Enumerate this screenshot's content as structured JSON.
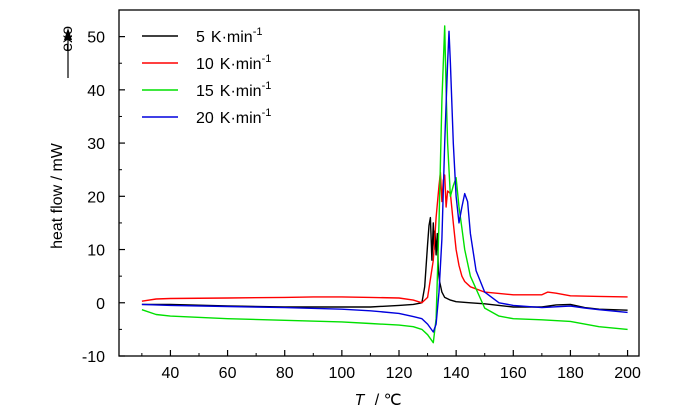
{
  "chart_data": {
    "type": "line",
    "xlabel_var": "T",
    "xlabel_unit": "/ ℃",
    "ylabel": "heat flow / mW",
    "exo_label": "exo",
    "xlim": [
      22,
      204
    ],
    "ylim": [
      -10,
      55
    ],
    "xticks": [
      40,
      60,
      80,
      100,
      120,
      140,
      160,
      180,
      200
    ],
    "yticks": [
      -10,
      0,
      10,
      20,
      30,
      40,
      50
    ],
    "grid": false,
    "legend_position": "top-left",
    "series": [
      {
        "legend_value": "5",
        "legend_unit": "K·min",
        "legend_exp": "-1",
        "color": "#000000",
        "x": [
          30,
          40,
          60,
          80,
          100,
          110,
          120,
          125,
          128,
          129,
          130,
          130.5,
          131,
          131.5,
          132,
          132.3,
          132.6,
          133,
          133.4,
          133.8,
          134.2,
          135,
          136,
          138,
          140,
          145,
          150,
          155,
          160,
          165,
          170,
          175,
          180,
          185,
          190,
          200
        ],
        "y": [
          -0.3,
          -0.3,
          -0.6,
          -0.8,
          -0.8,
          -0.8,
          -0.5,
          -0.3,
          0,
          3,
          11,
          14.5,
          16,
          8,
          15,
          10,
          13.5,
          9,
          13,
          6,
          4,
          2,
          1,
          0.5,
          0.2,
          0,
          -0.2,
          -0.5,
          -0.8,
          -0.8,
          -0.8,
          -0.4,
          -0.3,
          -0.9,
          -1.2,
          -1.4
        ]
      },
      {
        "legend_value": "10",
        "legend_unit": "K·min",
        "legend_exp": "-1",
        "color": "#ff0000",
        "x": [
          30,
          35,
          40,
          60,
          80,
          90,
          100,
          110,
          120,
          125,
          128,
          130,
          132,
          133,
          134,
          134.5,
          135,
          135.5,
          136,
          136.5,
          137,
          138,
          139,
          140,
          141,
          142,
          143,
          145,
          150,
          160,
          170,
          172,
          175,
          180,
          190,
          200
        ],
        "y": [
          0.3,
          0.7,
          0.8,
          0.9,
          1.0,
          1.1,
          1.1,
          1.0,
          0.9,
          0.5,
          0,
          1,
          8,
          16,
          22,
          24.5,
          19,
          23,
          24,
          18,
          21,
          20.5,
          15,
          10,
          7,
          5,
          4,
          3,
          2,
          1.5,
          1.5,
          2,
          1.8,
          1.3,
          1.2,
          1.1
        ]
      },
      {
        "legend_value": "15",
        "legend_unit": "K·min",
        "legend_exp": "-1",
        "color": "#00e000",
        "x": [
          30,
          35,
          40,
          60,
          80,
          100,
          110,
          120,
          125,
          128,
          130,
          132,
          133,
          134,
          135,
          136,
          136.5,
          137,
          138,
          139,
          140,
          141,
          142,
          143,
          145,
          150,
          155,
          160,
          170,
          180,
          185,
          190,
          200
        ],
        "y": [
          -1.3,
          -2.2,
          -2.5,
          -3.0,
          -3.3,
          -3.6,
          -3.9,
          -4.2,
          -4.5,
          -5,
          -6,
          -7.5,
          -3,
          15,
          38,
          52,
          40,
          30,
          20,
          22,
          23.5,
          18,
          14,
          10,
          5,
          -1,
          -2.5,
          -3,
          -3.2,
          -3.5,
          -4,
          -4.5,
          -5
        ]
      },
      {
        "legend_value": "20",
        "legend_unit": "K·min",
        "legend_exp": "-1",
        "color": "#0000dd",
        "x": [
          30,
          40,
          60,
          80,
          100,
          110,
          120,
          125,
          128,
          130,
          132,
          133,
          134,
          135,
          136,
          137,
          137.5,
          138,
          139,
          140,
          141,
          142,
          143,
          144,
          145,
          147,
          150,
          155,
          160,
          170,
          180,
          185,
          190,
          200
        ],
        "y": [
          -0.3,
          -0.5,
          -0.7,
          -0.9,
          -1.2,
          -1.5,
          -2,
          -2.6,
          -3,
          -4,
          -5.5,
          -4,
          2,
          12,
          30,
          45,
          51,
          45,
          30,
          20,
          15,
          18,
          20.5,
          19,
          13,
          6,
          2,
          0,
          -0.5,
          -0.9,
          -0.6,
          -1,
          -1.3,
          -1.8
        ]
      }
    ]
  }
}
